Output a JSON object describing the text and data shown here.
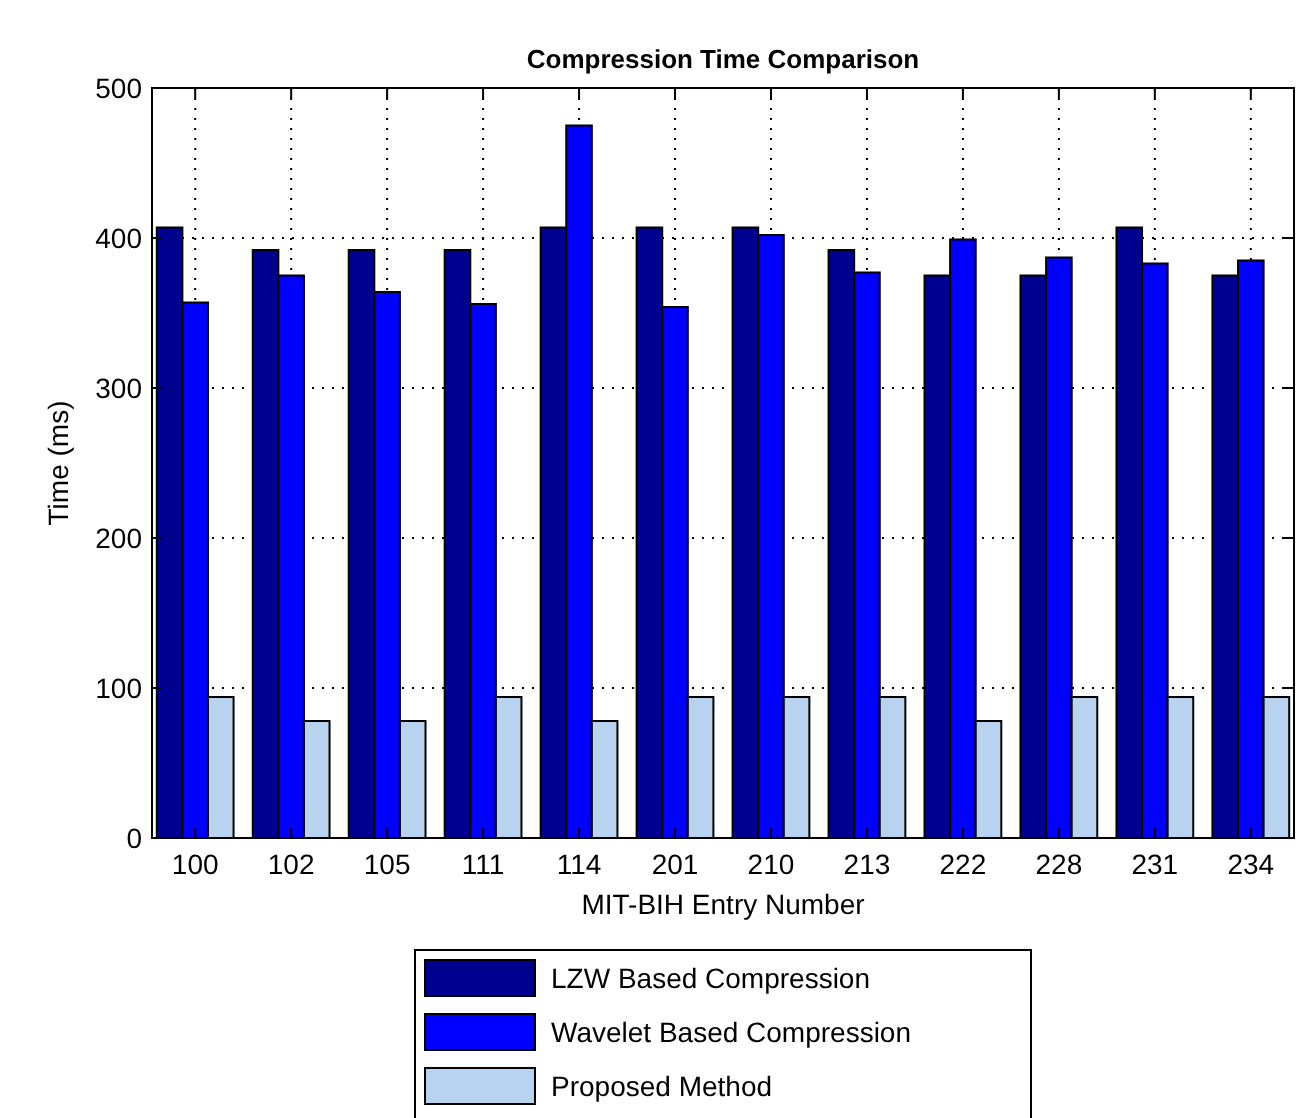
{
  "chart_data": {
    "type": "bar",
    "title": "Compression Time Comparison",
    "xlabel": "MIT-BIH Entry Number",
    "ylabel": "Time (ms)",
    "categories": [
      "100",
      "102",
      "105",
      "111",
      "114",
      "201",
      "210",
      "213",
      "222",
      "228",
      "231",
      "234"
    ],
    "series": [
      {
        "name": "LZW Based Compression",
        "color": "#00008f",
        "values": [
          407,
          392,
          392,
          392,
          407,
          407,
          407,
          392,
          375,
          375,
          407,
          375
        ]
      },
      {
        "name": "Wavelet Based Compression",
        "color": "#0000ff",
        "values": [
          357,
          375,
          364,
          356,
          475,
          354,
          402,
          377,
          399,
          387,
          383,
          385
        ]
      },
      {
        "name": "Proposed Method",
        "color": "#b8d3f0",
        "values": [
          94,
          78,
          78,
          94,
          78,
          94,
          94,
          94,
          78,
          94,
          94,
          94
        ]
      }
    ],
    "ylim": [
      0,
      500
    ],
    "yticks": [
      0,
      100,
      200,
      300,
      400,
      500
    ],
    "grid": true,
    "legend": "bottom"
  }
}
